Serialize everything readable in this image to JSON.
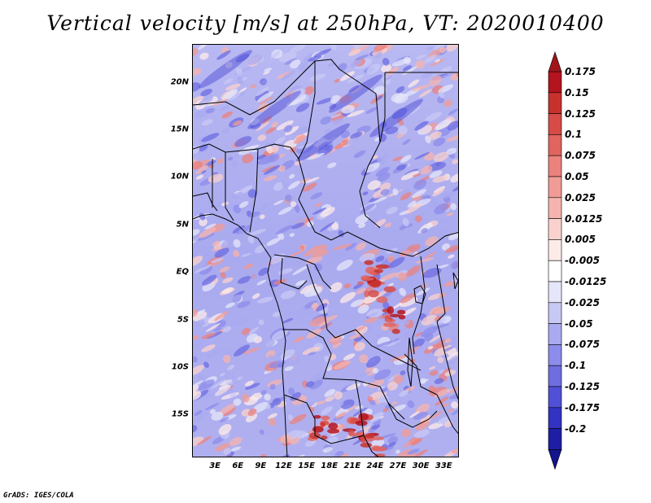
{
  "title": "Vertical velocity [m/s] at 250hPa, VT: 2020010400",
  "credit": "GrADS: IGES/COLA",
  "map": {
    "lon_range": [
      0,
      35
    ],
    "lat_range": [
      -19.5,
      24
    ],
    "lat_labels": [
      {
        "lat": 20,
        "text": "20N"
      },
      {
        "lat": 15,
        "text": "15N"
      },
      {
        "lat": 10,
        "text": "10N"
      },
      {
        "lat": 5,
        "text": "5N"
      },
      {
        "lat": 0,
        "text": "EQ"
      },
      {
        "lat": -5,
        "text": "5S"
      },
      {
        "lat": -10,
        "text": "10S"
      },
      {
        "lat": -15,
        "text": "15S"
      }
    ],
    "lon_labels": [
      {
        "lon": 3,
        "text": "3E"
      },
      {
        "lon": 6,
        "text": "6E"
      },
      {
        "lon": 9,
        "text": "9E"
      },
      {
        "lon": 12,
        "text": "12E"
      },
      {
        "lon": 15,
        "text": "15E"
      },
      {
        "lon": 18,
        "text": "18E"
      },
      {
        "lon": 21,
        "text": "21E"
      },
      {
        "lon": 24,
        "text": "24E"
      },
      {
        "lon": 27,
        "text": "27E"
      },
      {
        "lon": 30,
        "text": "30E"
      },
      {
        "lon": 33,
        "text": "33E"
      }
    ]
  },
  "colorbar": {
    "levels": [
      {
        "label": "0.175",
        "color": "#b4141e"
      },
      {
        "label": "0.15",
        "color": "#c8322d"
      },
      {
        "label": "0.125",
        "color": "#d74b46"
      },
      {
        "label": "0.1",
        "color": "#e1645f"
      },
      {
        "label": "0.075",
        "color": "#eb827d"
      },
      {
        "label": "0.05",
        "color": "#f09b96"
      },
      {
        "label": "0.025",
        "color": "#f5b4af"
      },
      {
        "label": "0.0125",
        "color": "#fad2cd"
      },
      {
        "label": "0.005",
        "color": "#fdebe8"
      },
      {
        "label": "-0.005",
        "color": "#ffffff"
      },
      {
        "label": "-0.0125",
        "color": "#e6e6fa"
      },
      {
        "label": "-0.025",
        "color": "#c8c8f5"
      },
      {
        "label": "-0.05",
        "color": "#aaaaf0"
      },
      {
        "label": "-0.075",
        "color": "#8c8ceb"
      },
      {
        "label": "-0.1",
        "color": "#6e6ee1"
      },
      {
        "label": "-0.125",
        "color": "#5050d7"
      },
      {
        "label": "-0.175",
        "color": "#3232c3"
      },
      {
        "label": "-0.2",
        "color": "#1e1ea5"
      }
    ],
    "top_color": "#a0141e",
    "bottom_color": "#14148c"
  }
}
